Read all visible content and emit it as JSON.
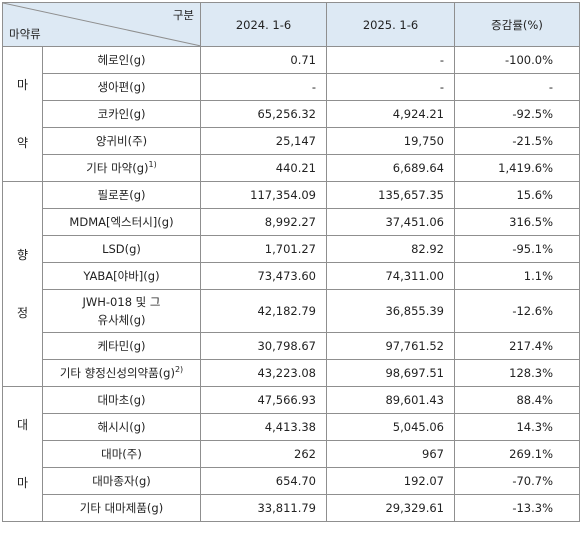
{
  "header": {
    "corner_top": "구분",
    "corner_bottom": "마약류",
    "col_2024": "2024. 1-6",
    "col_2025": "2025. 1-6",
    "col_change": "증감률(%)"
  },
  "narcotics": {
    "label_1": "마",
    "label_2": "약",
    "rows": [
      {
        "item": "헤로인(g)",
        "v2024": "0.71",
        "v2025": "-",
        "change": "-100.0%"
      },
      {
        "item": "생아편(g)",
        "v2024": "-",
        "v2025": "-",
        "change": "-"
      },
      {
        "item": "코카인(g)",
        "v2024": "65,256.32",
        "v2025": "4,924.21",
        "change": "-92.5%"
      },
      {
        "item": "양귀비(주)",
        "v2024": "25,147",
        "v2025": "19,750",
        "change": "-21.5%"
      },
      {
        "item": "기타 마약(g)",
        "sup": "1)",
        "v2024": "440.21",
        "v2025": "6,689.64",
        "change": "1,419.6%"
      }
    ]
  },
  "psychotropics": {
    "label_1": "향",
    "label_2": "정",
    "rows": [
      {
        "item": "필로폰(g)",
        "v2024": "117,354.09",
        "v2025": "135,657.35",
        "change": "15.6%"
      },
      {
        "item": "MDMA[엑스터시](g)",
        "v2024": "8,992.27",
        "v2025": "37,451.06",
        "change": "316.5%"
      },
      {
        "item": "LSD(g)",
        "v2024": "1,701.27",
        "v2025": "82.92",
        "change": "-95.1%"
      },
      {
        "item": "YABA[야바](g)",
        "v2024": "73,473.60",
        "v2025": "74,311.00",
        "change": "1.1%"
      },
      {
        "item_line1": "JWH-018 및 그",
        "item_line2": "유사체(g)",
        "v2024": "42,182.79",
        "v2025": "36,855.39",
        "change": "-12.6%"
      },
      {
        "item": "케타민(g)",
        "v2024": "30,798.67",
        "v2025": "97,761.52",
        "change": "217.4%"
      },
      {
        "item": "기타 향정신성의약품(g)",
        "sup": "2)",
        "v2024": "43,223.08",
        "v2025": "98,697.51",
        "change": "128.3%"
      }
    ]
  },
  "cannabis": {
    "label_1": "대",
    "label_2": "마",
    "rows": [
      {
        "item": "대마초(g)",
        "v2024": "47,566.93",
        "v2025": "89,601.43",
        "change": "88.4%"
      },
      {
        "item": "해시시(g)",
        "v2024": "4,413.38",
        "v2025": "5,045.06",
        "change": "14.3%"
      },
      {
        "item": "대마(주)",
        "v2024": "262",
        "v2025": "967",
        "change": "269.1%"
      },
      {
        "item": "대마종자(g)",
        "v2024": "654.70",
        "v2025": "192.07",
        "change": "-70.7%"
      },
      {
        "item": "기타 대마제품(g)",
        "v2024": "33,811.79",
        "v2025": "29,329.61",
        "change": "-13.3%"
      }
    ]
  }
}
